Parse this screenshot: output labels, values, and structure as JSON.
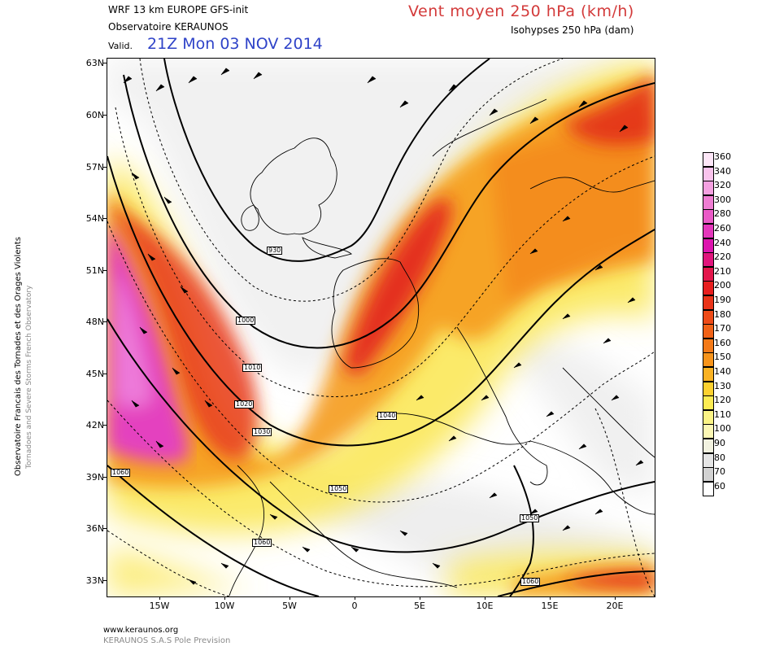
{
  "header": {
    "model_line": "WRF 13 km EUROPE   GFS-init",
    "observatoire": "Observatoire KERAUNOS",
    "valid_label": "Valid.",
    "valid_date": "21Z Mon 03 NOV 2014",
    "title": "Vent moyen 250 hPa (km/h)",
    "subtitle": "Isohypses 250 hPa (dam)"
  },
  "side_text": {
    "line1": "Observatoire Francais des Tornades et des Orages Violents",
    "line2": "Tornadoes and Severe Storms French Observatory"
  },
  "lat_labels": [
    "63N",
    "60N",
    "57N",
    "54N",
    "51N",
    "48N",
    "45N",
    "42N",
    "39N",
    "36N",
    "33N"
  ],
  "lon_labels": [
    "15W",
    "10W",
    "5W",
    "0",
    "5E",
    "10E",
    "15E",
    "20E"
  ],
  "legend": {
    "values": [
      "360",
      "340",
      "320",
      "300",
      "280",
      "260",
      "240",
      "220",
      "210",
      "200",
      "190",
      "180",
      "170",
      "160",
      "150",
      "140",
      "130",
      "120",
      "110",
      "100",
      "90",
      "80",
      "70",
      "60"
    ],
    "colors": [
      "#fde6f7",
      "#f9c3ec",
      "#f4a0e0",
      "#ef7dd3",
      "#ea5ac7",
      "#e437bb",
      "#dd14ae",
      "#e0157c",
      "#e3164b",
      "#e81e1e",
      "#ea3419",
      "#ee4b18",
      "#f16217",
      "#f47a18",
      "#f7941b",
      "#fab223",
      "#fdd12f",
      "#fdec52",
      "#fbf385",
      "#fcf7b4",
      "#f2f2e0",
      "#e5e5e5",
      "#d2d2d2",
      "#ffffff"
    ]
  },
  "isohypse_labels": [
    {
      "text": "930"
    },
    {
      "text": "1000"
    },
    {
      "text": "1010"
    },
    {
      "text": "1020"
    },
    {
      "text": "1030"
    },
    {
      "text": "1040"
    },
    {
      "text": "1050"
    },
    {
      "text": "1060"
    },
    {
      "text": "1050"
    },
    {
      "text": "1060"
    },
    {
      "text": "1060"
    }
  ],
  "footer": {
    "url": "www.keraunos.org",
    "company": "KERAUNOS S.A.S Pole Prevision"
  }
}
